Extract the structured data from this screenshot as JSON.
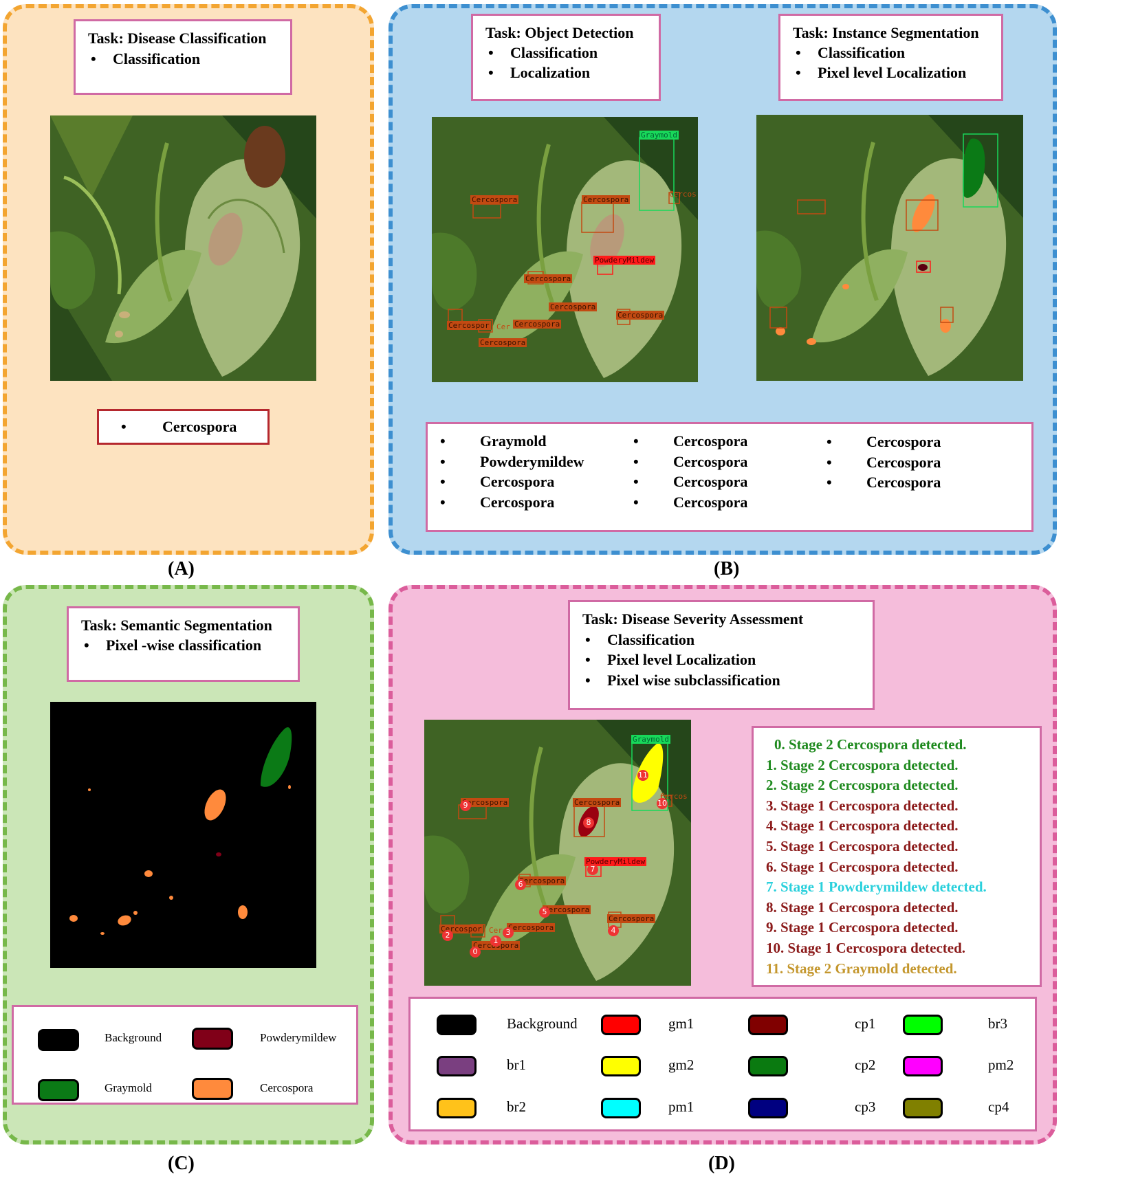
{
  "panel_a": {
    "label": "(A)",
    "task": {
      "title": "Task: Disease Classification",
      "items": [
        "Classification"
      ]
    },
    "result": "Cercospora"
  },
  "panel_b": {
    "label": "(B)",
    "task_detection": {
      "title": "Task: Object Detection",
      "items": [
        "Classification",
        "Localization"
      ]
    },
    "task_instance": {
      "title": "Task: Instance Segmentation",
      "items": [
        "Classification",
        "Pixel level Localization"
      ]
    },
    "detection_tags": [
      "Graymold",
      "Cercos",
      "Cercospora",
      "Cercospora",
      "PowderyMildew",
      "Cercospora",
      "Cercospora",
      "Cercospora",
      "Cercospor",
      "Cercospora",
      "Cercospora",
      "Cer"
    ],
    "results": [
      [
        "Graymold",
        "Powderymildew",
        "Cercospora",
        "Cercospora"
      ],
      [
        "Cercospora",
        "Cercospora",
        "Cercospora",
        "Cercospora"
      ],
      [
        "Cercospora",
        "Cercospora",
        "Cercospora"
      ]
    ]
  },
  "panel_c": {
    "label": "(C)",
    "task": {
      "title": "Task: Semantic Segmentation",
      "items": [
        "Pixel -wise classification"
      ]
    },
    "legend": [
      {
        "name": "Background",
        "color": "#000000"
      },
      {
        "name": "Powderymildew",
        "color": "#800018"
      },
      {
        "name": "Graymold",
        "color": "#0b7a16"
      },
      {
        "name": "Cercospora",
        "color": "#ff8a3c"
      }
    ]
  },
  "panel_d": {
    "label": "(D)",
    "task": {
      "title": "Task: Disease Severity Assessment",
      "items": [
        "Classification",
        "Pixel level Localization",
        "Pixel wise subclassification"
      ]
    },
    "stages": [
      {
        "text": "0. Stage 2 Cercospora detected.",
        "color": "#1f8a1f"
      },
      {
        "text": "1. Stage 2 Cercospora detected.",
        "color": "#1f8a1f"
      },
      {
        "text": "2. Stage 2 Cercospora detected.",
        "color": "#1f8a1f"
      },
      {
        "text": "3. Stage 1 Cercospora detected.",
        "color": "#8b1a1a"
      },
      {
        "text": "4. Stage 1 Cercospora detected.",
        "color": "#8b1a1a"
      },
      {
        "text": "5. Stage 1 Cercospora detected.",
        "color": "#8b1a1a"
      },
      {
        "text": "6. Stage 1 Cercospora detected.",
        "color": "#8b1a1a"
      },
      {
        "text": "7. Stage 1 Powderymildew detected.",
        "color": "#2ad0dc"
      },
      {
        "text": "8. Stage 1 Cercospora detected.",
        "color": "#8b1a1a"
      },
      {
        "text": "9. Stage 1 Cercospora detected.",
        "color": "#8b1a1a"
      },
      {
        "text": "10. Stage 1 Cercospora detected.",
        "color": "#8b1a1a"
      },
      {
        "text": "11. Stage 2 Graymold detected.",
        "color": "#c4972e"
      }
    ],
    "legend": [
      {
        "name": "Background",
        "color": "#000000"
      },
      {
        "name": "gm1",
        "color": "#ff0000"
      },
      {
        "name": "cp1",
        "color": "#800000"
      },
      {
        "name": "br3",
        "color": "#00ff00"
      },
      {
        "name": "br1",
        "color": "#7a3f80"
      },
      {
        "name": "gm2",
        "color": "#ffff00"
      },
      {
        "name": "cp2",
        "color": "#0a7a10"
      },
      {
        "name": "pm2",
        "color": "#ff00ff"
      },
      {
        "name": "br2",
        "color": "#ffc21a"
      },
      {
        "name": "pm1",
        "color": "#00ffff"
      },
      {
        "name": "cp3",
        "color": "#000080"
      },
      {
        "name": "cp4",
        "color": "#808000"
      }
    ],
    "mask_tags": [
      "Graymold",
      "Cercos",
      "Cercospora",
      "Cercospora",
      "PowderyMildew",
      "Cercospora",
      "Cercospora",
      "Cercospora",
      "Cercospor",
      "Cercospora",
      "Cercospora",
      "Cer"
    ],
    "mask_numbers": [
      "11",
      "10",
      "9",
      "8",
      "7",
      "6",
      "5",
      "4",
      "3",
      "2",
      "1",
      "0"
    ]
  }
}
